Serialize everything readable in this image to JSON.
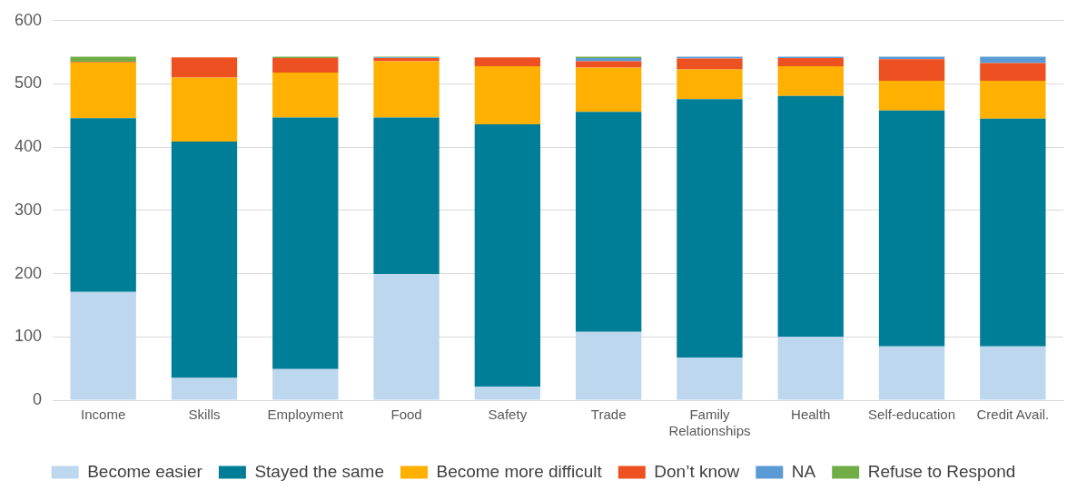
{
  "chart_data": {
    "type": "bar",
    "stacked": true,
    "categories": [
      "Income",
      "Skills",
      "Employment",
      "Food",
      "Safety",
      "Trade",
      "Family Relationships",
      "Health",
      "Self-education",
      "Credit Avail."
    ],
    "series": [
      {
        "name": "Become easier",
        "color": "#bdd7ee",
        "values": [
          171,
          35,
          49,
          199,
          21,
          108,
          67,
          100,
          85,
          85
        ]
      },
      {
        "name": "Stayed the same",
        "color": "#007e97",
        "values": [
          275,
          374,
          398,
          248,
          415,
          348,
          409,
          381,
          373,
          360
        ]
      },
      {
        "name": "Become more difficult",
        "color": "#ffb000",
        "values": [
          88,
          101,
          71,
          89,
          92,
          70,
          47,
          47,
          47,
          60
        ]
      },
      {
        "name": "Don’t know",
        "color": "#ed5121",
        "values": [
          1,
          32,
          23,
          5,
          14,
          10,
          17,
          13,
          34,
          28
        ]
      },
      {
        "name": "NA",
        "color": "#5b9bd5",
        "values": [
          0,
          0,
          0,
          1,
          null,
          5,
          3,
          2,
          4,
          10
        ]
      },
      {
        "name": "Refuse to Respond",
        "color": "#70ad47",
        "values": [
          8,
          null,
          2,
          1,
          0,
          2,
          0,
          0,
          0,
          0
        ]
      }
    ],
    "ylim": [
      0,
      600
    ],
    "yticks": [
      0,
      100,
      200,
      300,
      400,
      500,
      600
    ],
    "grid": "y",
    "legend": "bottom"
  }
}
